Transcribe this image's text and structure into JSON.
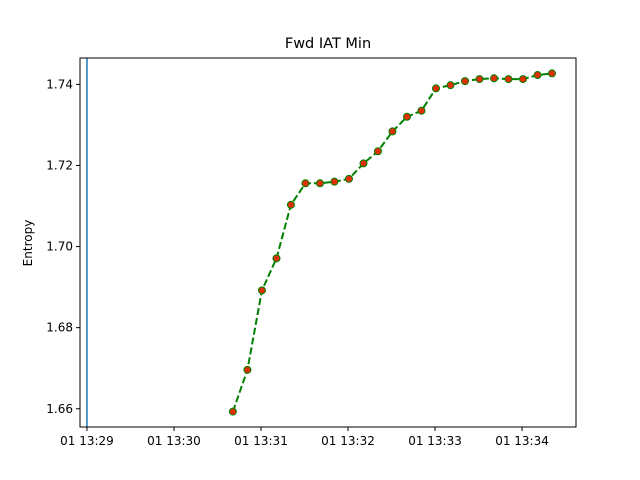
{
  "chart_data": {
    "type": "line",
    "title": "Fwd IAT Min",
    "xlabel": "",
    "ylabel": "Entropy",
    "x_axis": "time (minutes since 13:29)",
    "xlim": [
      -0.08,
      5.62
    ],
    "ylim": [
      1.6555,
      1.7465
    ],
    "x_ticks": [
      {
        "value": 0,
        "label": "01 13:29"
      },
      {
        "value": 1,
        "label": "01 13:30"
      },
      {
        "value": 2,
        "label": "01 13:31"
      },
      {
        "value": 3,
        "label": "01 13:32"
      },
      {
        "value": 4,
        "label": "01 13:33"
      },
      {
        "value": 5,
        "label": "01 13:34"
      }
    ],
    "y_ticks": [
      {
        "value": 1.66,
        "label": "1.66"
      },
      {
        "value": 1.68,
        "label": "1.68"
      },
      {
        "value": 1.7,
        "label": "1.70"
      },
      {
        "value": 1.72,
        "label": "1.72"
      },
      {
        "value": 1.74,
        "label": "1.74"
      }
    ],
    "vertical_line": {
      "x": 0,
      "color": "#1f77b4"
    },
    "series": [
      {
        "line_color": "#008000",
        "line_style": "dashed",
        "marker_color": "#e0300a",
        "points": [
          [
            1.677,
            1.6593
          ],
          [
            1.844,
            1.6696
          ],
          [
            2.011,
            1.6892
          ],
          [
            2.178,
            1.6971
          ],
          [
            2.344,
            1.7103
          ],
          [
            2.511,
            1.7156
          ],
          [
            2.678,
            1.7156
          ],
          [
            2.844,
            1.716
          ],
          [
            3.011,
            1.7167
          ],
          [
            3.178,
            1.7205
          ],
          [
            3.344,
            1.7235
          ],
          [
            3.511,
            1.7284
          ],
          [
            3.678,
            1.732
          ],
          [
            3.844,
            1.7335
          ],
          [
            4.011,
            1.739
          ],
          [
            4.178,
            1.7398
          ],
          [
            4.344,
            1.7408
          ],
          [
            4.511,
            1.7413
          ],
          [
            4.678,
            1.7415
          ],
          [
            4.844,
            1.7413
          ],
          [
            5.011,
            1.7413
          ],
          [
            5.178,
            1.7423
          ],
          [
            5.344,
            1.7427
          ]
        ]
      }
    ]
  }
}
